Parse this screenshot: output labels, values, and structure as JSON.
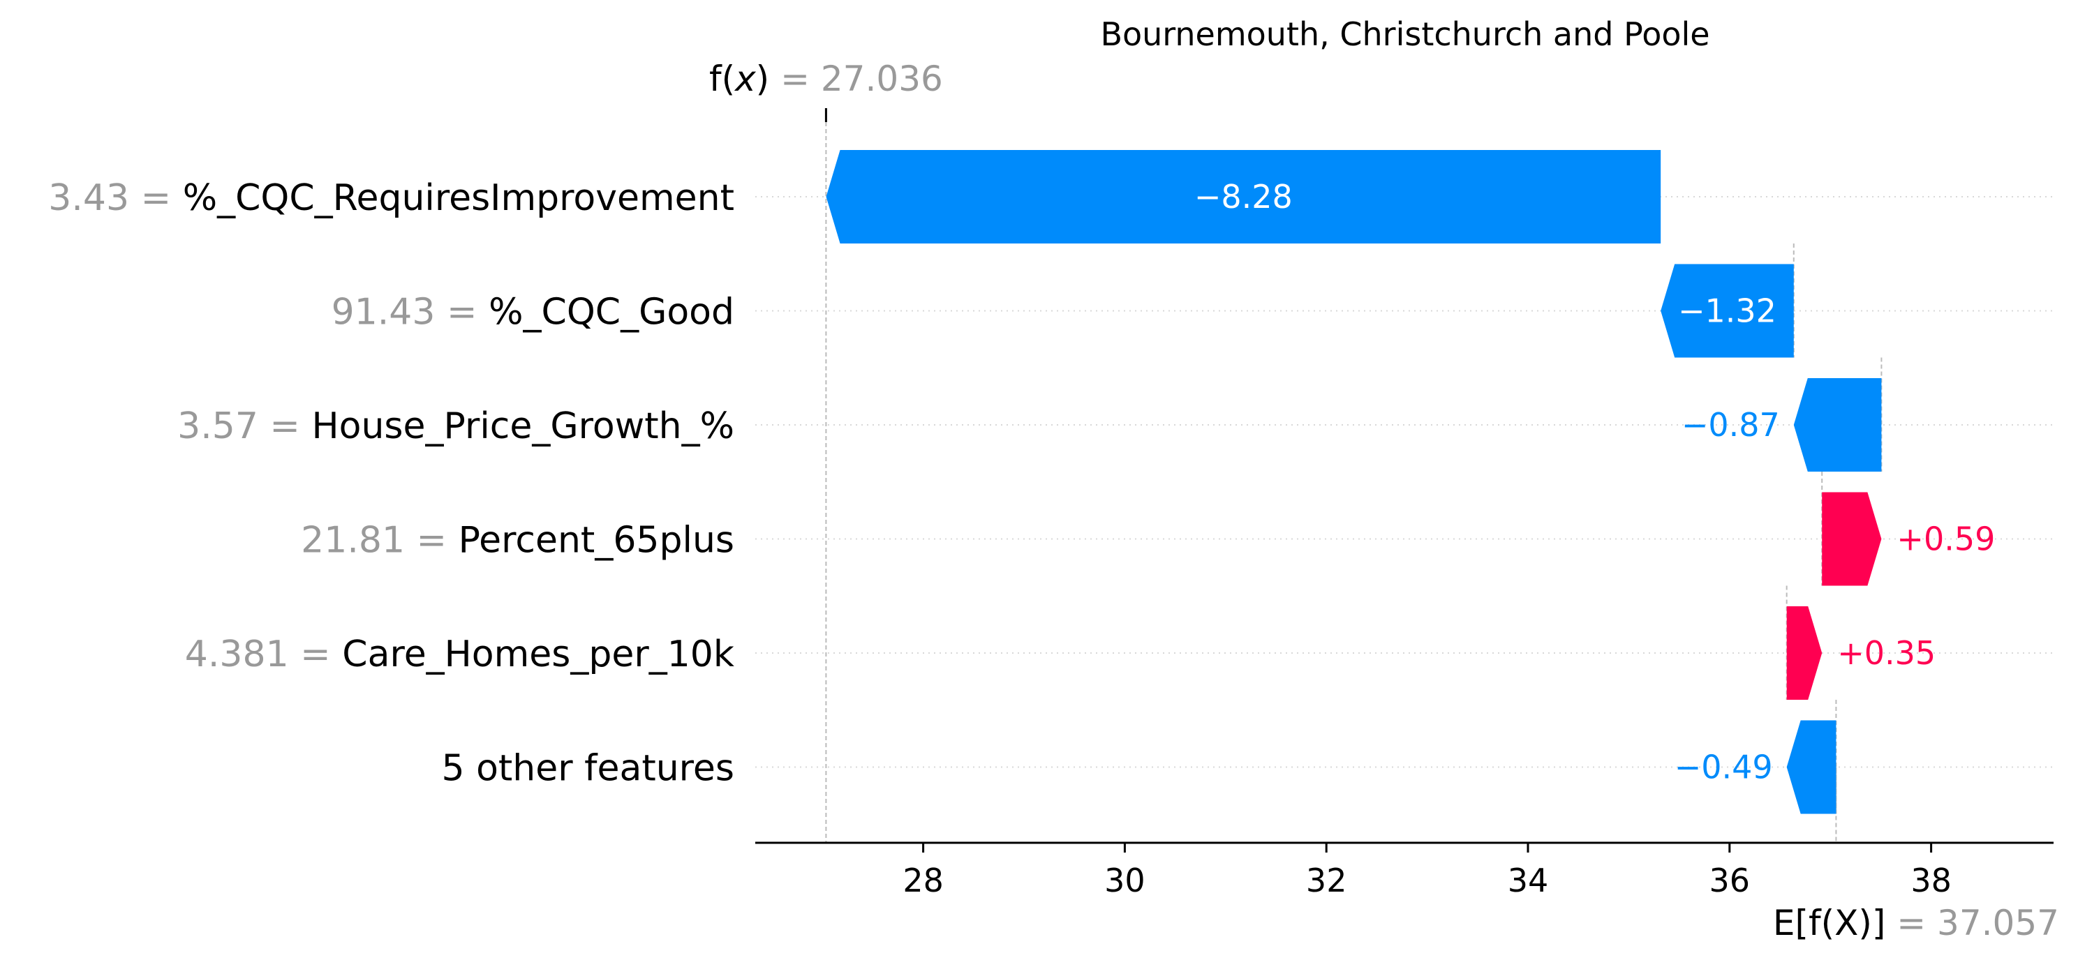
{
  "chart_data": {
    "type": "waterfall",
    "title": "Bournemouth, Christchurch and Poole",
    "fx": {
      "label_prefix": "f",
      "label_var": "x",
      "value": "= 27.036",
      "numeric": 27.036
    },
    "base": {
      "label": "E[f(X)]",
      "value": "= 37.057",
      "numeric": 37.057
    },
    "xlim": [
      26.0,
      39.7
    ],
    "xticks": [
      28,
      30,
      32,
      34,
      36,
      38
    ],
    "grid": "horizontal dotted per row",
    "colors": {
      "positive": "#ff0051",
      "negative": "#008bfb",
      "label_gray": "#999999"
    },
    "rows": [
      {
        "value_text": "3.43 =",
        "feature": "%_CQC_RequiresImprovement",
        "shap": -8.28,
        "label": "−8.28",
        "label_inside": true
      },
      {
        "value_text": "91.43 =",
        "feature": "%_CQC_Good",
        "shap": -1.32,
        "label": "−1.32",
        "label_inside": true
      },
      {
        "value_text": "3.57 =",
        "feature": "House_Price_Growth_%",
        "shap": -0.87,
        "label": "−0.87",
        "label_inside": false
      },
      {
        "value_text": "21.81 =",
        "feature": "Percent_65plus",
        "shap": 0.59,
        "label": "+0.59",
        "label_inside": false
      },
      {
        "value_text": "4.381 =",
        "feature": "Care_Homes_per_10k",
        "shap": 0.35,
        "label": "+0.35",
        "label_inside": false
      },
      {
        "value_text": "",
        "feature": "5 other features",
        "shap": -0.49,
        "label": "−0.49",
        "label_inside": false
      }
    ]
  }
}
